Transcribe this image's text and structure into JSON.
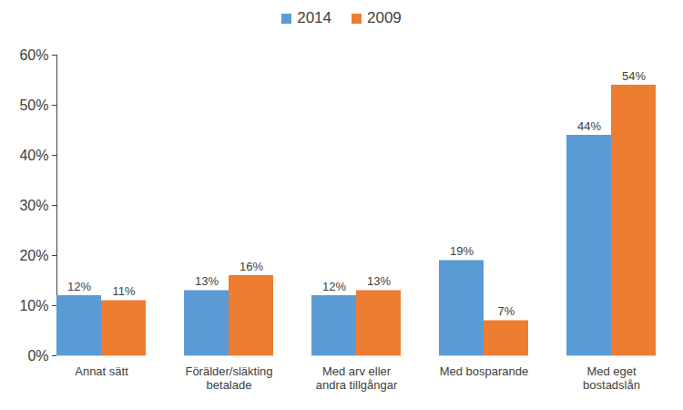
{
  "chart_data": {
    "type": "bar",
    "categories": [
      "Annat sätt",
      "Förälder/släkting\nbetalade",
      "Med arv eller\nandra tillgångar",
      "Med bosparande",
      "Med eget\nbostadslån"
    ],
    "series": [
      {
        "name": "2014",
        "color": "#5b9bd5",
        "values": [
          12,
          13,
          12,
          19,
          44
        ],
        "value_labels": [
          "12%",
          "13%",
          "12%",
          "19%",
          "44%"
        ]
      },
      {
        "name": "2009",
        "color": "#ed7d31",
        "values": [
          11,
          16,
          13,
          7,
          54
        ],
        "value_labels": [
          "11%",
          "16%",
          "13%",
          "7%",
          "54%"
        ]
      }
    ],
    "ylim": [
      0,
      60
    ],
    "yticks": [
      {
        "value": 0,
        "label": "0%"
      },
      {
        "value": 10,
        "label": "10%"
      },
      {
        "value": 20,
        "label": "20%"
      },
      {
        "value": 30,
        "label": "30%"
      },
      {
        "value": 40,
        "label": "40%"
      },
      {
        "value": 50,
        "label": "50%"
      },
      {
        "value": 60,
        "label": "60%"
      }
    ],
    "grid": false,
    "legend": "top",
    "data_labels": true
  }
}
